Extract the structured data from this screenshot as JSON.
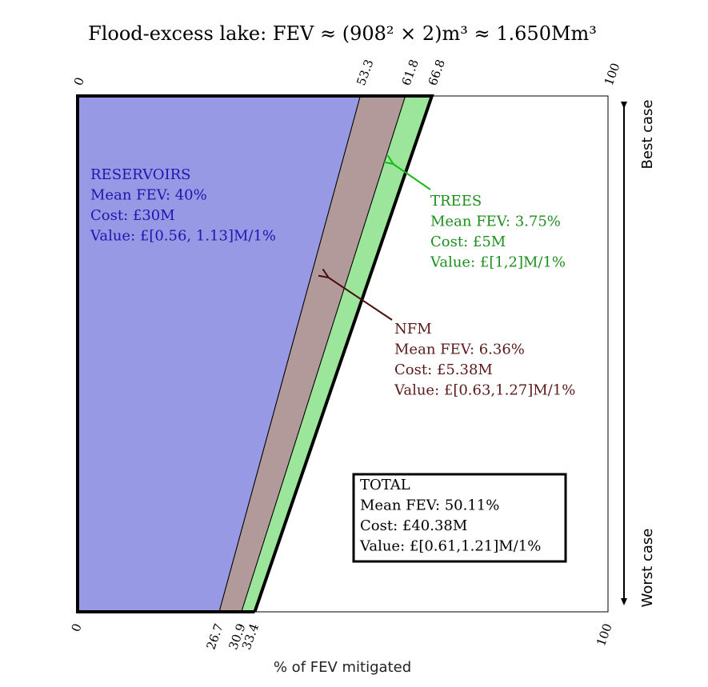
{
  "chart_data": {
    "type": "area",
    "title": "Flood-excess lake: FEV ≈ (908² × 2)m³ ≈ 1.650Mm³",
    "xlabel": "% of FEV mitigated",
    "xlim": [
      0,
      100
    ],
    "top_ticks": [
      "0",
      "53.3",
      "61.8",
      "66.8",
      "100"
    ],
    "bottom_ticks": [
      "0",
      "26.7",
      "30.9",
      "33.4",
      "100"
    ],
    "y_axis": {
      "top_label": "Best case",
      "bottom_label": "Worst case"
    },
    "bands": [
      {
        "name": "RESERVOIRS",
        "best_case": [
          0,
          53.3
        ],
        "worst_case": [
          0,
          26.7
        ],
        "color": "#9799e5",
        "label_color": "#1f16b0",
        "lines": [
          "RESERVOIRS",
          "Mean FEV: 40%",
          "Cost: £30M",
          "Value: £[0.56, 1.13]M/1%"
        ]
      },
      {
        "name": "NFM",
        "best_case": [
          53.3,
          61.8
        ],
        "worst_case": [
          26.7,
          30.9
        ],
        "color": "#b39a9a",
        "label_color": "#5a1a1a",
        "lines": [
          "NFM",
          "Mean FEV: 6.36%",
          "Cost: £5.38M",
          "Value: £[0.63,1.27]M/1%"
        ]
      },
      {
        "name": "TREES",
        "best_case": [
          61.8,
          66.8
        ],
        "worst_case": [
          30.9,
          33.4
        ],
        "color": "#9be69b",
        "label_color": "#1d8e1d",
        "lines": [
          "TREES",
          "Mean FEV: 3.75%",
          "Cost: £5M",
          "Value: £[1,2]M/1%"
        ]
      }
    ],
    "total": {
      "lines": [
        "TOTAL",
        "Mean FEV: 50.11%",
        "Cost: £40.38M",
        "Value: £[0.61,1.21]M/1%"
      ]
    },
    "grid": false
  }
}
